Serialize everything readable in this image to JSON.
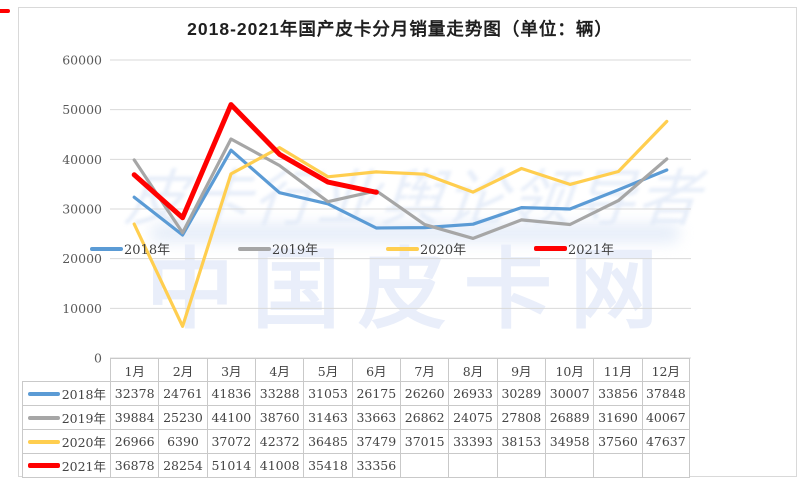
{
  "title": "2018-2021年国产皮卡分月销量走势图（单位：辆）",
  "watermark": {
    "slogan": "皮卡行业舆论领导者",
    "brand": "中国皮卡网"
  },
  "colors": {
    "gridline": "#d9d9d9",
    "table_border": "#c9c9c9",
    "axis_text": "#595959",
    "accent_red": "#ff0000"
  },
  "chart_data": {
    "type": "line",
    "title": "2018-2021年国产皮卡分月销量走势图（单位：辆）",
    "categories": [
      "1月",
      "2月",
      "3月",
      "4月",
      "5月",
      "6月",
      "7月",
      "8月",
      "9月",
      "10月",
      "11月",
      "12月"
    ],
    "series": [
      {
        "name": "2018年",
        "color": "#5b9bd5",
        "width": 3.2,
        "values": [
          32378,
          24761,
          41836,
          33288,
          31053,
          26175,
          26260,
          26933,
          30289,
          30007,
          33856,
          37848
        ]
      },
      {
        "name": "2019年",
        "color": "#a6a6a6",
        "width": 3.2,
        "values": [
          39884,
          25230,
          44100,
          38760,
          31463,
          33663,
          26862,
          24075,
          27808,
          26889,
          31690,
          40067
        ]
      },
      {
        "name": "2020年",
        "color": "#ffce4f",
        "width": 3.2,
        "values": [
          26966,
          6390,
          37072,
          42372,
          36485,
          37479,
          37015,
          33393,
          38153,
          34958,
          37560,
          47637
        ]
      },
      {
        "name": "2021年",
        "color": "#ff0000",
        "width": 5,
        "values": [
          36878,
          28254,
          51014,
          41008,
          35418,
          33356
        ]
      }
    ],
    "xlabel": "",
    "ylabel": "",
    "ylim": [
      0,
      60000
    ],
    "ytick_interval": 10000,
    "yticks": [
      "0",
      "10000",
      "20000",
      "30000",
      "40000",
      "50000",
      "60000"
    ],
    "grid": true,
    "legend_position": "inside-center-row",
    "data_table_shown": true
  }
}
